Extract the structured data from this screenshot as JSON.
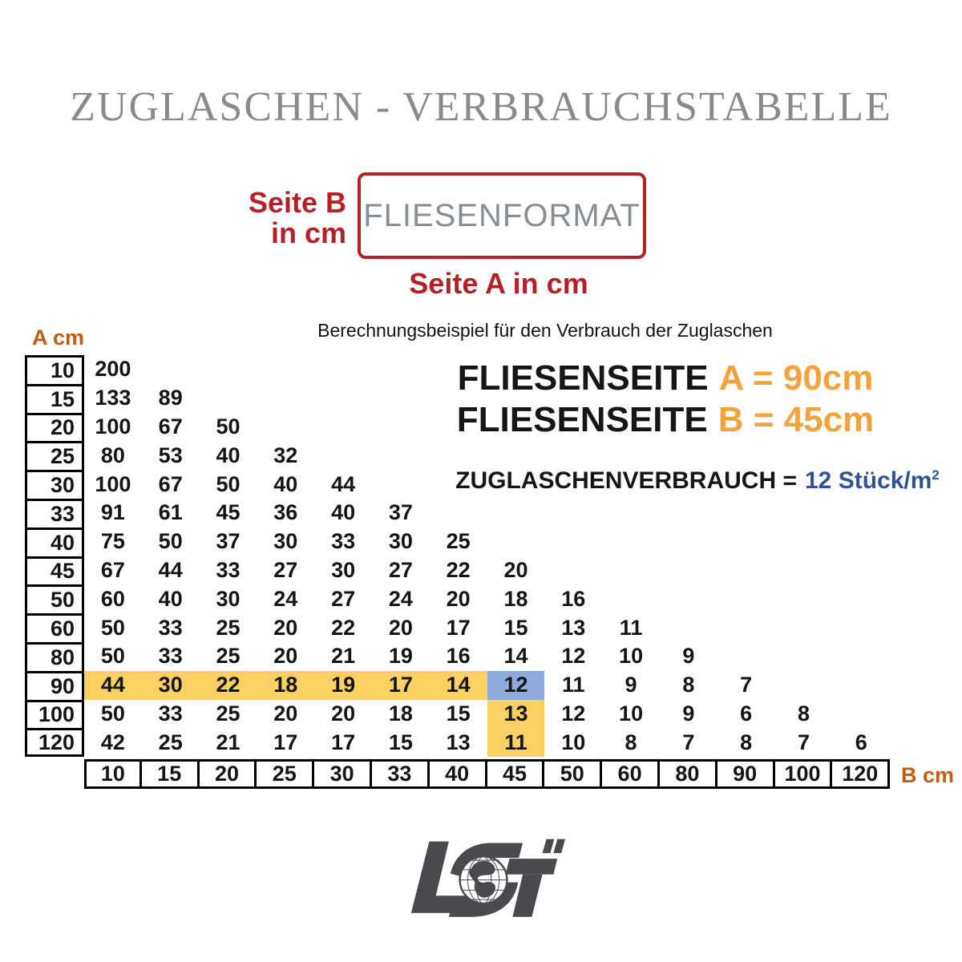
{
  "title": "ZUGLASCHEN - VERBRAUCHSTABELLE",
  "diagram": {
    "side_b_label_line1": "Seite B",
    "side_b_label_line2": "in cm",
    "format_box_label": "FLIESENFORMAT",
    "side_a_label": "Seite A in cm"
  },
  "example": {
    "intro": "Berechnungsbeispiel für den Verbrauch der Zuglaschen",
    "line1_label": "FLIESENSEITE",
    "line1_value": "A = 90cm",
    "line2_label": "FLIESENSEITE",
    "line2_value": "B = 45cm",
    "line3_label": "ZUGLASCHENVERBRAUCH =",
    "line3_value": "12 Stück/m",
    "line3_sup": "2"
  },
  "table": {
    "row_axis_label": "A cm",
    "col_axis_label": "B cm",
    "row_labels": [
      "10",
      "15",
      "20",
      "25",
      "30",
      "33",
      "40",
      "45",
      "50",
      "60",
      "80",
      "90",
      "100",
      "120"
    ],
    "col_labels": [
      "10",
      "15",
      "20",
      "25",
      "30",
      "33",
      "40",
      "45",
      "50",
      "60",
      "80",
      "90",
      "100",
      "120"
    ],
    "highlights": [
      {
        "row": 11,
        "cols": [
          0,
          1,
          2,
          3,
          4,
          5,
          6
        ],
        "color": "yellow"
      },
      {
        "row": 11,
        "cols": [
          7
        ],
        "color": "blue"
      },
      {
        "row": 12,
        "cols": [
          7
        ],
        "color": "yellow"
      },
      {
        "row": 13,
        "cols": [
          7
        ],
        "color": "yellow"
      }
    ]
  },
  "chart_data": {
    "type": "table",
    "title": "ZUGLASCHEN - VERBRAUCHSTABELLE",
    "x_categories_B_cm": [
      10,
      15,
      20,
      25,
      30,
      33,
      40,
      45,
      50,
      60,
      80,
      90,
      100,
      120
    ],
    "y_categories_A_cm": [
      10,
      15,
      20,
      25,
      30,
      33,
      40,
      45,
      50,
      60,
      80,
      90,
      100,
      120
    ],
    "values_stueck_per_m2": [
      [
        200
      ],
      [
        133,
        89
      ],
      [
        100,
        67,
        50
      ],
      [
        80,
        53,
        40,
        32
      ],
      [
        100,
        67,
        50,
        40,
        44
      ],
      [
        91,
        61,
        45,
        36,
        40,
        37
      ],
      [
        75,
        50,
        37,
        30,
        33,
        30,
        25
      ],
      [
        67,
        44,
        33,
        27,
        30,
        27,
        22,
        20
      ],
      [
        60,
        40,
        30,
        24,
        27,
        24,
        20,
        18,
        16
      ],
      [
        50,
        33,
        25,
        20,
        22,
        20,
        17,
        15,
        13,
        11
      ],
      [
        50,
        33,
        25,
        20,
        21,
        19,
        16,
        14,
        12,
        10,
        9
      ],
      [
        44,
        30,
        22,
        18,
        19,
        17,
        14,
        12,
        11,
        9,
        8,
        7
      ],
      [
        50,
        33,
        25,
        20,
        20,
        18,
        15,
        13,
        12,
        10,
        9,
        6,
        8
      ],
      [
        42,
        25,
        21,
        17,
        17,
        15,
        13,
        11,
        10,
        8,
        7,
        8,
        7,
        6
      ]
    ],
    "highlighted_example": {
      "A_cm": 90,
      "B_cm": 45,
      "verbrauch_stueck_per_m2": 12
    }
  },
  "colors": {
    "accent_red": "#B42025",
    "accent_orange": "#F2A33C",
    "accent_blue": "#2F5496",
    "axis_orange": "#C55A11",
    "highlight_yellow": "#FBD164",
    "highlight_blue": "#8EA9DB",
    "title_gray": "#8A8A8E",
    "box_text_gray": "#878E94",
    "logo_gray": "#4A494E"
  },
  "logo": {
    "text": "LST"
  }
}
